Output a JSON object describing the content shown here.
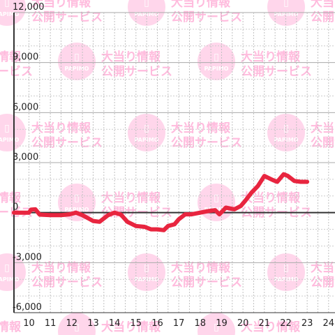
{
  "chart_data": {
    "type": "line",
    "x": [
      9.3,
      9.6,
      10.0,
      10.1,
      10.3,
      10.5,
      11.0,
      11.5,
      11.9,
      12.2,
      12.5,
      13.0,
      13.3,
      13.7,
      14.0,
      14.3,
      14.6,
      15.0,
      15.4,
      15.7,
      16.0,
      16.3,
      16.5,
      16.8,
      17.0,
      17.3,
      17.6,
      18.0,
      18.4,
      18.7,
      18.9,
      19.2,
      19.6,
      19.9,
      20.1,
      20.4,
      20.7,
      21.0,
      21.4,
      21.6,
      21.9,
      22.1,
      22.4,
      22.7,
      23.0
    ],
    "y": [
      0,
      0,
      0,
      180,
      200,
      -120,
      -150,
      -150,
      -100,
      0,
      -150,
      -500,
      -550,
      -150,
      0,
      -120,
      -550,
      -800,
      -850,
      -1000,
      -1000,
      -1050,
      -800,
      -700,
      -400,
      -100,
      -100,
      0,
      100,
      150,
      -100,
      300,
      200,
      400,
      700,
      1200,
      1600,
      2200,
      1950,
      1850,
      2300,
      2200,
      1900,
      1850,
      1850
    ],
    "ylim": [
      -6000,
      12000
    ],
    "xlim": [
      9.3,
      24.3
    ],
    "yticks": [
      "12,000",
      "9,000",
      "6,000",
      "3,000",
      "0",
      "-3,000",
      "-6,000"
    ],
    "xticks": [
      "10",
      "11",
      "12",
      "13",
      "14",
      "15",
      "16",
      "17",
      "18",
      "19",
      "20",
      "21",
      "22",
      "23",
      "24"
    ],
    "grid": true,
    "colors": {
      "line": "#e8253f",
      "axis": "#333333",
      "grid": "#bbbbbb",
      "watermark_circle": "#ffd0e8",
      "watermark_text": "#ffb0d8"
    }
  },
  "watermark": {
    "logo_text": "PAPIMO",
    "line1": "大当り情報",
    "line2": "公開サービス",
    "icon_glyph": "▯"
  }
}
